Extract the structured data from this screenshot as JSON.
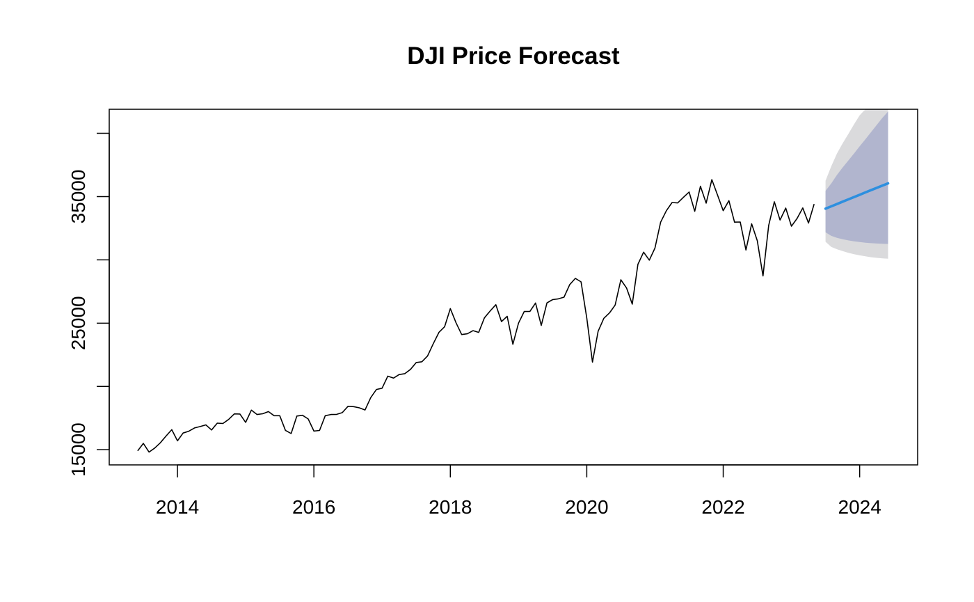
{
  "chart_data": {
    "type": "line",
    "title": "DJI Price Forecast",
    "xlabel": "",
    "ylabel": "",
    "xlim": [
      2013.0,
      2024.85
    ],
    "ylim": [
      13800,
      41900
    ],
    "x_ticks": [
      2014,
      2016,
      2018,
      2020,
      2022,
      2024
    ],
    "x_tick_labels": [
      "2014",
      "2016",
      "2018",
      "2020",
      "2022",
      "2024"
    ],
    "y_ticks": [
      15000,
      20000,
      25000,
      30000,
      35000,
      40000
    ],
    "y_tick_labels": [
      "15000",
      "",
      "25000",
      "",
      "35000",
      ""
    ],
    "grid": false,
    "legend": "none",
    "colors": {
      "history": "#000000",
      "forecast_mean": "#2d8fdf",
      "interval_80": "#b1b5ce",
      "interval_95": "#dadadc"
    },
    "history": {
      "start": 2013.4167,
      "step": 0.08333,
      "values": [
        14910,
        15500,
        14810,
        15130,
        15550,
        16080,
        16580,
        15700,
        16320,
        16460,
        16720,
        16830,
        16960,
        16560,
        17100,
        17070,
        17390,
        17830,
        17820,
        17160,
        18130,
        17780,
        17840,
        18010,
        17690,
        17690,
        16530,
        16280,
        17660,
        17720,
        17430,
        16470,
        16520,
        17690,
        17780,
        17790,
        17930,
        18430,
        18400,
        18310,
        18140,
        19120,
        19760,
        19860,
        20810,
        20660,
        20940,
        21010,
        21350,
        21890,
        21950,
        22410,
        23380,
        24270,
        24720,
        26150,
        25030,
        24100,
        24160,
        24410,
        24270,
        25420,
        25960,
        26460,
        25120,
        25540,
        23330,
        25000,
        25920,
        25930,
        26590,
        24820,
        26600,
        26860,
        26920,
        27050,
        28050,
        28540,
        28260,
        25410,
        21920,
        24350,
        25380,
        25810,
        26430,
        28430,
        27780,
        26500,
        29640,
        30610,
        29980,
        30930,
        32980,
        33880,
        34530,
        34500,
        34940,
        35360,
        33840,
        35820,
        34480,
        36340,
        35130,
        33890,
        34680,
        32980,
        32990,
        30780,
        32850,
        31510,
        28730,
        32730,
        34590,
        33150,
        34090,
        32660,
        33270,
        34100,
        32910,
        34410
      ]
    },
    "forecast": {
      "start": 2023.5,
      "step": 0.08333,
      "mean": [
        34050,
        34230,
        34410,
        34600,
        34780,
        34960,
        35140,
        35330,
        35510,
        35690,
        35870,
        36050
      ],
      "lo80": [
        32180,
        31900,
        31740,
        31630,
        31540,
        31470,
        31410,
        31360,
        31320,
        31290,
        31270,
        31260
      ],
      "hi80": [
        35450,
        36040,
        36710,
        37290,
        37840,
        38400,
        38970,
        39520,
        40090,
        40660,
        41220,
        41720
      ],
      "lo95": [
        31430,
        31030,
        30840,
        30700,
        30560,
        30450,
        30360,
        30280,
        30210,
        30160,
        30120,
        30090
      ],
      "hi95": [
        36250,
        37390,
        38400,
        39200,
        39940,
        40700,
        41420,
        42140,
        42840,
        43530,
        44200,
        44850
      ]
    }
  }
}
